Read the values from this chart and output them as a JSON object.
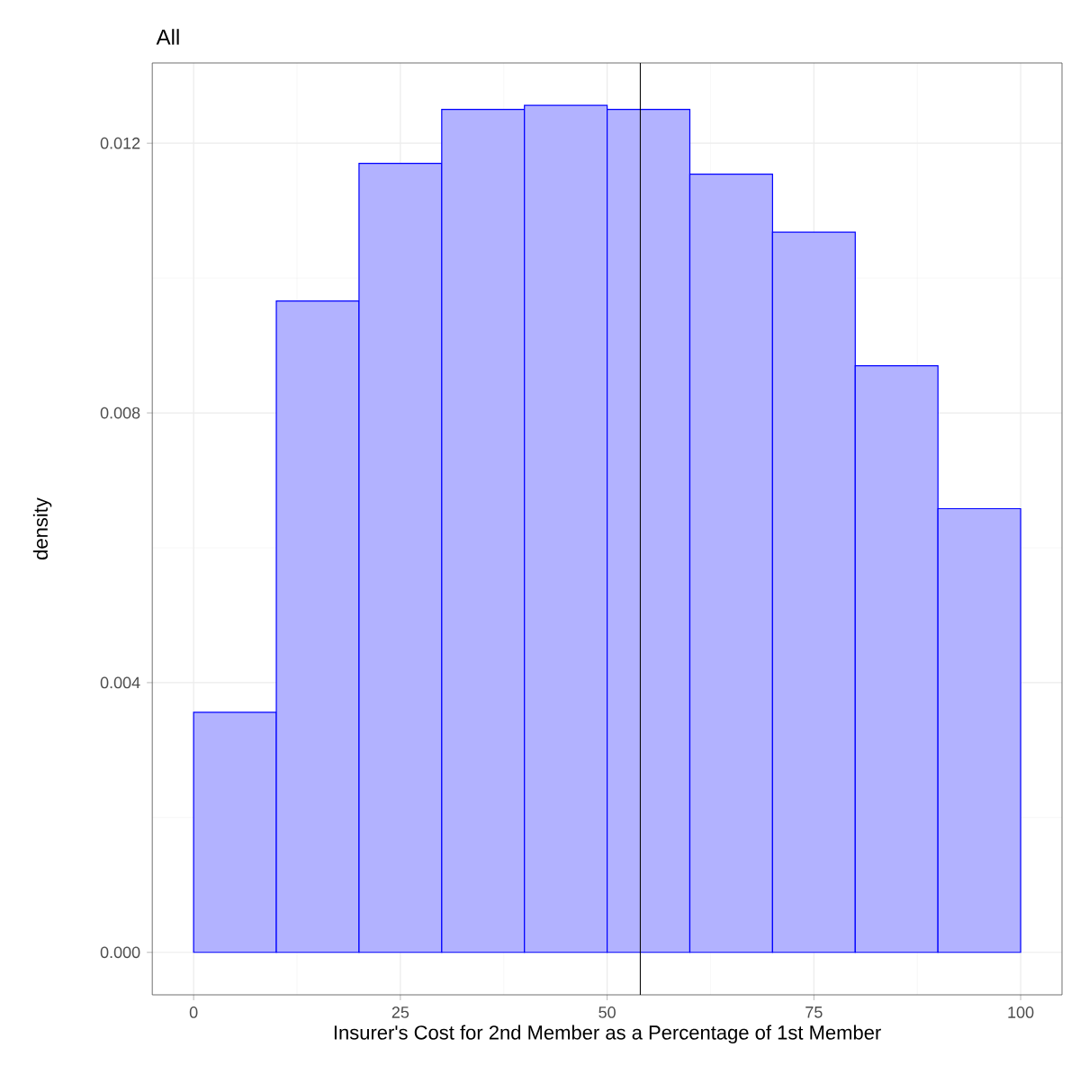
{
  "chart_data": {
    "type": "histogram",
    "title": "All",
    "xlabel": "Insurer's Cost for 2nd Member as a Percentage of 1st Member",
    "ylabel": "density",
    "bins": [
      0,
      10,
      20,
      30,
      40,
      50,
      60,
      70,
      80,
      90,
      100
    ],
    "values": [
      0.00356,
      0.00966,
      0.0117,
      0.0125,
      0.01256,
      0.0125,
      0.01154,
      0.01068,
      0.0087,
      0.00658
    ],
    "color": "#0000ff",
    "xlim": [
      -5,
      105
    ],
    "ylim": [
      -0.00063,
      0.01319
    ],
    "xticks": [
      0,
      25,
      50,
      75,
      100
    ],
    "yticks": [
      {
        "value": 0,
        "label": "0.000"
      },
      {
        "value": 0.004,
        "label": "0.004"
      },
      {
        "value": 0.008,
        "label": "0.008"
      },
      {
        "value": 0.012,
        "label": "0.012"
      }
    ],
    "grid": true,
    "ref_lines": [
      {
        "axis": "x",
        "value": 54,
        "color": "#000000"
      }
    ]
  }
}
